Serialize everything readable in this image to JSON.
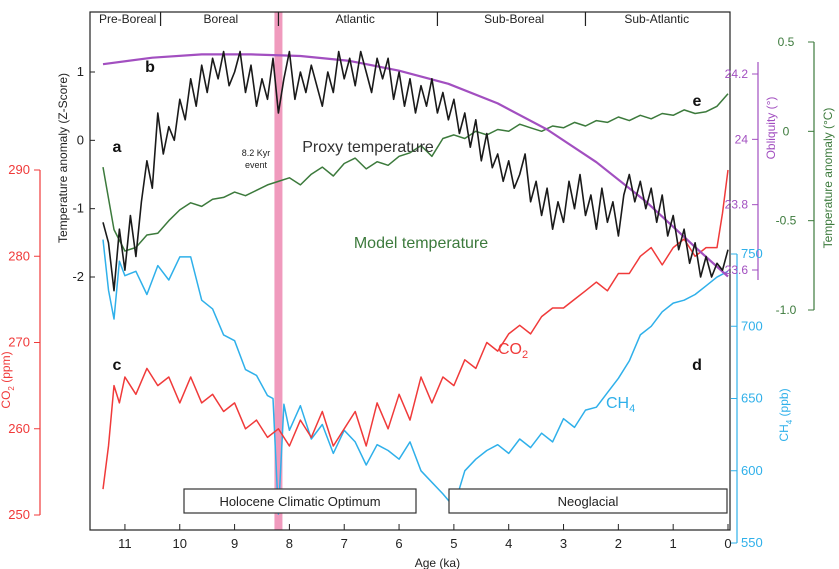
{
  "chart_data": {
    "type": "line",
    "colors": {
      "proxy": "#1a1a1a",
      "model": "#3c7a3c",
      "obliquity": "#a24fc0",
      "co2": "#f03a3a",
      "ch4": "#2fb0ea",
      "event": "#ee8fb6",
      "axis": "#222222"
    },
    "periods": [
      "Pre-Boreal",
      "Boreal",
      "Atlantic",
      "Sub-Boreal",
      "Sub-Atlantic"
    ],
    "panel_letters": [
      "a",
      "b",
      "c",
      "d",
      "e"
    ],
    "annotations": {
      "event_line1": "8.2 Kyr",
      "event_line2": "event",
      "proxy_label": "Proxy temperature",
      "model_label": "Model temperature",
      "co2_label": "CO",
      "co2_sub": "2",
      "ch4_label": "CH",
      "ch4_sub": "4"
    },
    "boxes": {
      "hco": "Holocene Climatic Optimum",
      "neo": "Neoglacial"
    },
    "x_axis": {
      "label": "Age (ka)",
      "range": [
        11.4,
        0
      ],
      "ticks": [
        "11",
        "10",
        "9",
        "8",
        "7",
        "6",
        "5",
        "4",
        "3",
        "2",
        "1",
        "0"
      ]
    },
    "y_left_temp": {
      "label": "Temperature anomaly (Z-Score)",
      "range": [
        -2.3,
        1.4
      ],
      "ticks": [
        "1",
        "0",
        "-1",
        "-2"
      ]
    },
    "y_left_co2": {
      "label_main": "CO",
      "label_sub": "2",
      "label_tail": " (ppm)",
      "range": [
        250,
        290
      ],
      "ticks": [
        "290",
        "280",
        "270",
        "260",
        "250"
      ]
    },
    "y_right_obliquity": {
      "label": "Obliquity (°)",
      "range": [
        23.5,
        24.3
      ],
      "ticks": [
        "24.2",
        "24",
        "23.8",
        "23.6"
      ]
    },
    "y_right_ch4": {
      "label_main": "CH",
      "label_sub": "4",
      "label_tail": " (ppb)",
      "range": [
        550,
        760
      ],
      "ticks": [
        "750",
        "700",
        "650",
        "600",
        "550"
      ]
    },
    "y_right_model": {
      "label": "Temperature anomaly (°C)",
      "range": [
        -1.0,
        0.5
      ],
      "ticks": [
        "0.5",
        "0",
        "-0.5",
        "-1.0"
      ]
    },
    "series": [
      {
        "name": "Proxy temperature",
        "axis": "temp",
        "x": [
          11.4,
          11.3,
          11.2,
          11.1,
          11.0,
          10.9,
          10.8,
          10.7,
          10.6,
          10.5,
          10.4,
          10.3,
          10.2,
          10.1,
          10.0,
          9.9,
          9.8,
          9.7,
          9.6,
          9.5,
          9.4,
          9.3,
          9.2,
          9.1,
          9.0,
          8.9,
          8.8,
          8.7,
          8.6,
          8.5,
          8.4,
          8.3,
          8.2,
          8.1,
          8.0,
          7.9,
          7.8,
          7.7,
          7.6,
          7.5,
          7.4,
          7.3,
          7.2,
          7.1,
          7.0,
          6.9,
          6.8,
          6.7,
          6.6,
          6.5,
          6.4,
          6.3,
          6.2,
          6.1,
          6.0,
          5.9,
          5.8,
          5.7,
          5.6,
          5.5,
          5.4,
          5.3,
          5.2,
          5.1,
          5.0,
          4.9,
          4.8,
          4.7,
          4.6,
          4.5,
          4.4,
          4.3,
          4.2,
          4.1,
          4.0,
          3.9,
          3.8,
          3.7,
          3.6,
          3.5,
          3.4,
          3.3,
          3.2,
          3.1,
          3.0,
          2.9,
          2.8,
          2.7,
          2.6,
          2.5,
          2.4,
          2.3,
          2.2,
          2.1,
          2.0,
          1.9,
          1.8,
          1.7,
          1.6,
          1.5,
          1.4,
          1.3,
          1.2,
          1.1,
          1.0,
          0.9,
          0.8,
          0.7,
          0.6,
          0.5,
          0.4,
          0.3,
          0.2,
          0.1,
          0.0
        ],
        "y": [
          -1.2,
          -1.5,
          -2.2,
          -1.3,
          -1.9,
          -1.1,
          -1.7,
          -0.9,
          -0.3,
          -0.7,
          0.4,
          -0.2,
          0.2,
          0.0,
          0.6,
          0.3,
          0.9,
          0.5,
          1.1,
          0.7,
          1.2,
          0.9,
          1.3,
          0.8,
          1.0,
          1.3,
          0.7,
          1.1,
          0.5,
          0.9,
          0.6,
          1.2,
          0.4,
          0.9,
          1.3,
          0.6,
          1.0,
          0.7,
          1.1,
          0.8,
          0.5,
          1.0,
          0.7,
          1.3,
          0.9,
          1.2,
          0.8,
          1.3,
          1.0,
          0.7,
          1.2,
          0.9,
          1.2,
          0.6,
          1.0,
          0.5,
          0.9,
          0.4,
          0.8,
          0.5,
          0.9,
          0.4,
          0.7,
          0.3,
          0.6,
          0.1,
          0.4,
          -0.1,
          0.3,
          -0.3,
          0.1,
          -0.4,
          -0.2,
          -0.6,
          -0.3,
          -0.7,
          -0.5,
          -0.2,
          -0.9,
          -0.6,
          -1.1,
          -0.7,
          -1.3,
          -0.9,
          -1.2,
          -0.6,
          -1.0,
          -0.5,
          -1.1,
          -0.8,
          -1.3,
          -0.7,
          -1.2,
          -0.9,
          -1.4,
          -0.8,
          -0.5,
          -0.9,
          -0.6,
          -1.0,
          -0.7,
          -1.2,
          -0.8,
          -1.4,
          -1.1,
          -1.6,
          -1.3,
          -1.8,
          -1.5,
          -2.0,
          -1.7,
          -2.0,
          -1.8,
          -1.9,
          -1.6
        ]
      },
      {
        "name": "Model temperature",
        "axis": "model",
        "x": [
          11.4,
          11.2,
          11.0,
          10.8,
          10.6,
          10.4,
          10.2,
          10.0,
          9.8,
          9.6,
          9.4,
          9.2,
          9.0,
          8.8,
          8.6,
          8.4,
          8.2,
          8.0,
          7.8,
          7.6,
          7.4,
          7.2,
          7.0,
          6.8,
          6.6,
          6.4,
          6.2,
          6.0,
          5.8,
          5.6,
          5.4,
          5.2,
          5.0,
          4.8,
          4.6,
          4.4,
          4.2,
          4.0,
          3.8,
          3.6,
          3.4,
          3.2,
          3.0,
          2.8,
          2.6,
          2.4,
          2.2,
          2.0,
          1.8,
          1.6,
          1.4,
          1.2,
          1.0,
          0.8,
          0.6,
          0.4,
          0.2,
          0.0
        ],
        "y": [
          -0.2,
          -0.55,
          -0.67,
          -0.65,
          -0.58,
          -0.57,
          -0.5,
          -0.44,
          -0.4,
          -0.42,
          -0.38,
          -0.37,
          -0.34,
          -0.36,
          -0.33,
          -0.3,
          -0.28,
          -0.26,
          -0.3,
          -0.24,
          -0.2,
          -0.25,
          -0.18,
          -0.15,
          -0.21,
          -0.17,
          -0.19,
          -0.14,
          -0.12,
          -0.08,
          -0.14,
          -0.04,
          -0.02,
          -0.04,
          0.0,
          -0.02,
          0.01,
          0.0,
          0.04,
          0.02,
          0.0,
          0.03,
          0.02,
          0.05,
          0.03,
          0.06,
          0.05,
          0.08,
          0.06,
          0.09,
          0.07,
          0.1,
          0.09,
          0.12,
          0.1,
          0.11,
          0.14,
          0.21
        ]
      },
      {
        "name": "Obliquity",
        "axis": "obliquity",
        "x": [
          11.4,
          10.5,
          9.6,
          8.7,
          7.8,
          6.9,
          6.0,
          5.1,
          4.2,
          3.3,
          2.4,
          1.5,
          0.6,
          0.0
        ],
        "y": [
          24.23,
          24.25,
          24.26,
          24.26,
          24.255,
          24.24,
          24.21,
          24.17,
          24.11,
          24.03,
          23.93,
          23.81,
          23.67,
          23.58
        ]
      },
      {
        "name": "CO2",
        "axis": "co2",
        "x": [
          11.4,
          11.3,
          11.2,
          11.1,
          11.0,
          10.8,
          10.6,
          10.4,
          10.2,
          10.0,
          9.8,
          9.6,
          9.4,
          9.2,
          9.0,
          8.8,
          8.6,
          8.4,
          8.2,
          8.0,
          7.8,
          7.6,
          7.4,
          7.2,
          7.0,
          6.8,
          6.6,
          6.4,
          6.2,
          6.0,
          5.8,
          5.6,
          5.4,
          5.2,
          5.0,
          4.8,
          4.6,
          4.4,
          4.2,
          4.0,
          3.8,
          3.6,
          3.4,
          3.2,
          3.0,
          2.8,
          2.6,
          2.4,
          2.2,
          2.0,
          1.8,
          1.6,
          1.4,
          1.2,
          1.0,
          0.8,
          0.6,
          0.4,
          0.2,
          0.1,
          0.0
        ],
        "y": [
          253,
          258,
          265,
          263,
          266,
          264,
          267,
          265,
          266,
          263,
          266,
          263,
          264,
          262,
          263,
          260,
          261,
          259,
          260,
          258,
          261,
          259,
          262,
          258,
          260,
          262,
          258,
          263,
          260,
          264,
          261,
          266,
          263,
          266,
          265,
          268,
          267,
          270,
          269,
          271,
          272,
          271,
          273,
          274,
          274,
          275,
          276,
          277,
          276,
          278,
          278,
          280,
          281,
          279,
          281,
          282,
          280,
          281,
          281,
          285,
          290
        ]
      },
      {
        "name": "CH4",
        "axis": "ch4",
        "x": [
          11.4,
          11.3,
          11.2,
          11.1,
          11.0,
          10.8,
          10.6,
          10.4,
          10.2,
          10.0,
          9.8,
          9.6,
          9.4,
          9.2,
          9.0,
          8.8,
          8.6,
          8.4,
          8.3,
          8.2,
          8.1,
          8.0,
          7.8,
          7.6,
          7.4,
          7.2,
          7.0,
          6.8,
          6.6,
          6.4,
          6.2,
          6.0,
          5.8,
          5.6,
          5.4,
          5.2,
          5.0,
          4.8,
          4.6,
          4.4,
          4.2,
          4.0,
          3.8,
          3.6,
          3.4,
          3.2,
          3.0,
          2.8,
          2.6,
          2.4,
          2.2,
          2.0,
          1.8,
          1.6,
          1.4,
          1.2,
          1.0,
          0.8,
          0.6,
          0.4,
          0.2,
          0.0
        ],
        "y": [
          760,
          725,
          705,
          745,
          735,
          738,
          722,
          742,
          732,
          748,
          748,
          718,
          712,
          694,
          690,
          670,
          666,
          652,
          650,
          570,
          646,
          628,
          645,
          622,
          632,
          612,
          628,
          620,
          604,
          618,
          614,
          608,
          620,
          600,
          592,
          584,
          575,
          600,
          608,
          614,
          618,
          612,
          622,
          616,
          626,
          620,
          636,
          630,
          642,
          644,
          654,
          664,
          676,
          694,
          700,
          710,
          716,
          718,
          722,
          728,
          734,
          738
        ]
      }
    ]
  }
}
